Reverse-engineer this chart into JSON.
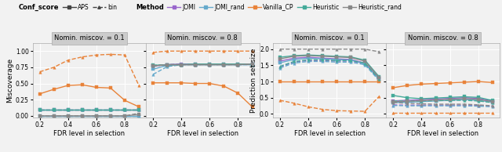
{
  "x": [
    0.2,
    0.3,
    0.4,
    0.5,
    0.6,
    0.7,
    0.8,
    0.9
  ],
  "background_color": "#f2f2f2",
  "plot_bg_color": "#f0f0f0",
  "grid_color": "white",
  "miscov01": {
    "Vanilla_CP_APS": [
      0.34,
      0.41,
      0.47,
      0.48,
      0.44,
      0.43,
      0.24,
      0.14
    ],
    "Vanilla_CP_bin": [
      0.68,
      0.75,
      0.86,
      0.91,
      0.94,
      0.95,
      0.94,
      0.47
    ],
    "JOMI_APS": [
      0.1,
      0.1,
      0.1,
      0.1,
      0.1,
      0.1,
      0.1,
      0.1
    ],
    "JOMI_bin": [
      0.1,
      0.1,
      0.1,
      0.1,
      0.1,
      0.1,
      0.1,
      0.1
    ],
    "JOMI_rand_APS": [
      0.0,
      0.0,
      0.0,
      0.0,
      0.0,
      0.0,
      0.0,
      0.0
    ],
    "JOMI_rand_bin": [
      0.0,
      0.0,
      0.0,
      0.0,
      0.0,
      0.0,
      0.0,
      0.0
    ],
    "Heuristic_APS": [
      0.1,
      0.1,
      0.1,
      0.1,
      0.1,
      0.1,
      0.1,
      0.1
    ],
    "Heuristic_bin": [
      0.1,
      0.1,
      0.1,
      0.1,
      0.1,
      0.1,
      0.1,
      0.1
    ],
    "Heuristic_rand_APS": [
      0.0,
      0.0,
      0.0,
      0.0,
      0.0,
      0.0,
      0.0,
      0.02
    ],
    "Heuristic_rand_bin": [
      0.0,
      0.0,
      0.0,
      0.0,
      0.0,
      0.0,
      0.0,
      0.04
    ]
  },
  "miscov08": {
    "Vanilla_CP_APS": [
      0.51,
      0.51,
      0.51,
      0.5,
      0.5,
      0.46,
      0.35,
      0.14
    ],
    "Vanilla_CP_bin": [
      0.98,
      1.0,
      1.0,
      1.0,
      1.0,
      1.0,
      1.0,
      1.0
    ],
    "JOMI_APS": [
      0.77,
      0.79,
      0.8,
      0.8,
      0.8,
      0.8,
      0.8,
      0.8
    ],
    "JOMI_bin": [
      0.77,
      0.79,
      0.8,
      0.8,
      0.8,
      0.8,
      0.8,
      0.8
    ],
    "JOMI_rand_APS": [
      0.72,
      0.78,
      0.79,
      0.79,
      0.79,
      0.79,
      0.79,
      0.79
    ],
    "JOMI_rand_bin": [
      0.64,
      0.76,
      0.79,
      0.79,
      0.79,
      0.79,
      0.79,
      0.79
    ],
    "Heuristic_APS": [
      0.78,
      0.79,
      0.79,
      0.8,
      0.8,
      0.8,
      0.8,
      0.8
    ],
    "Heuristic_bin": [
      0.78,
      0.79,
      0.79,
      0.8,
      0.8,
      0.8,
      0.8,
      0.8
    ],
    "Heuristic_rand_APS": [
      0.77,
      0.79,
      0.79,
      0.79,
      0.79,
      0.79,
      0.79,
      0.8
    ],
    "Heuristic_rand_bin": [
      0.77,
      0.79,
      0.79,
      0.79,
      0.79,
      0.79,
      0.79,
      0.8
    ]
  },
  "predsize01": {
    "Vanilla_CP_APS": [
      1.0,
      1.0,
      1.0,
      1.0,
      1.0,
      1.0,
      1.0,
      1.0
    ],
    "Vanilla_CP_bin": [
      0.42,
      0.33,
      0.22,
      0.14,
      0.1,
      0.09,
      0.08,
      0.54
    ],
    "JOMI_APS": [
      1.63,
      1.72,
      1.75,
      1.72,
      1.7,
      1.68,
      1.57,
      1.1
    ],
    "JOMI_bin": [
      1.45,
      1.6,
      1.65,
      1.65,
      1.63,
      1.63,
      1.55,
      1.05
    ],
    "JOMI_rand_APS": [
      1.58,
      1.68,
      1.72,
      1.7,
      1.68,
      1.66,
      1.55,
      1.08
    ],
    "JOMI_rand_bin": [
      1.42,
      1.57,
      1.62,
      1.62,
      1.6,
      1.6,
      1.52,
      1.03
    ],
    "Heuristic_APS": [
      1.75,
      1.8,
      1.82,
      1.8,
      1.78,
      1.76,
      1.66,
      1.15
    ],
    "Heuristic_bin": [
      1.47,
      1.62,
      1.67,
      1.67,
      1.65,
      1.65,
      1.57,
      1.07
    ],
    "Heuristic_rand_APS": [
      1.7,
      1.78,
      1.8,
      1.78,
      1.76,
      1.74,
      1.63,
      1.12
    ],
    "Heuristic_rand_bin": [
      2.0,
      2.0,
      2.0,
      2.0,
      2.0,
      2.0,
      2.0,
      1.92
    ]
  },
  "predsize08": {
    "Vanilla_CP_APS": [
      0.81,
      0.88,
      0.92,
      0.94,
      0.96,
      0.98,
      1.0,
      0.97
    ],
    "Vanilla_CP_bin": [
      0.03,
      0.03,
      0.03,
      0.03,
      0.03,
      0.03,
      0.03,
      0.03
    ],
    "JOMI_APS": [
      0.4,
      0.42,
      0.44,
      0.46,
      0.48,
      0.5,
      0.48,
      0.4
    ],
    "JOMI_bin": [
      0.28,
      0.27,
      0.27,
      0.27,
      0.27,
      0.27,
      0.26,
      0.24
    ],
    "JOMI_rand_APS": [
      0.35,
      0.36,
      0.38,
      0.4,
      0.42,
      0.44,
      0.42,
      0.36
    ],
    "JOMI_rand_bin": [
      0.26,
      0.25,
      0.25,
      0.25,
      0.25,
      0.25,
      0.24,
      0.22
    ],
    "Heuristic_APS": [
      0.57,
      0.5,
      0.47,
      0.49,
      0.51,
      0.53,
      0.51,
      0.42
    ],
    "Heuristic_bin": [
      0.4,
      0.4,
      0.4,
      0.41,
      0.42,
      0.42,
      0.4,
      0.35
    ],
    "Heuristic_rand_APS": [
      0.38,
      0.39,
      0.41,
      0.43,
      0.45,
      0.47,
      0.45,
      0.38
    ],
    "Heuristic_rand_bin": [
      0.35,
      0.33,
      0.31,
      0.3,
      0.3,
      0.3,
      0.28,
      0.25
    ]
  },
  "colors": {
    "JOMI": "#9966CC",
    "JOMI_rand": "#66AACC",
    "Vanilla_CP": "#E8833A",
    "Heuristic": "#44AA99",
    "Heuristic_rand": "#888888"
  },
  "conf_score_color": "#444444",
  "marker_APS": "s",
  "marker_bin": "^",
  "ls_APS": "-",
  "ls_bin": "--",
  "markersize": 2.5,
  "linewidth": 1.0,
  "titles": [
    "Nomin. miscov. = 0.1",
    "Nomin. miscov. = 0.8",
    "Nomin. miscov. = 0.1",
    "Nomin. miscov. = 0.8"
  ],
  "ylabel_left": "Miscoverage",
  "ylabel_right": "Prediction set size",
  "xlabel": "FDR level in selection",
  "ylim_miscov": [
    -0.03,
    1.12
  ],
  "ylim_predsize": [
    -0.12,
    2.18
  ],
  "yticks_miscov": [
    0.0,
    0.25,
    0.5,
    0.75,
    1.0
  ],
  "yticks_predsize": [
    0.0,
    0.5,
    1.0,
    1.5,
    2.0
  ],
  "xticks": [
    0.2,
    0.4,
    0.6,
    0.8
  ]
}
